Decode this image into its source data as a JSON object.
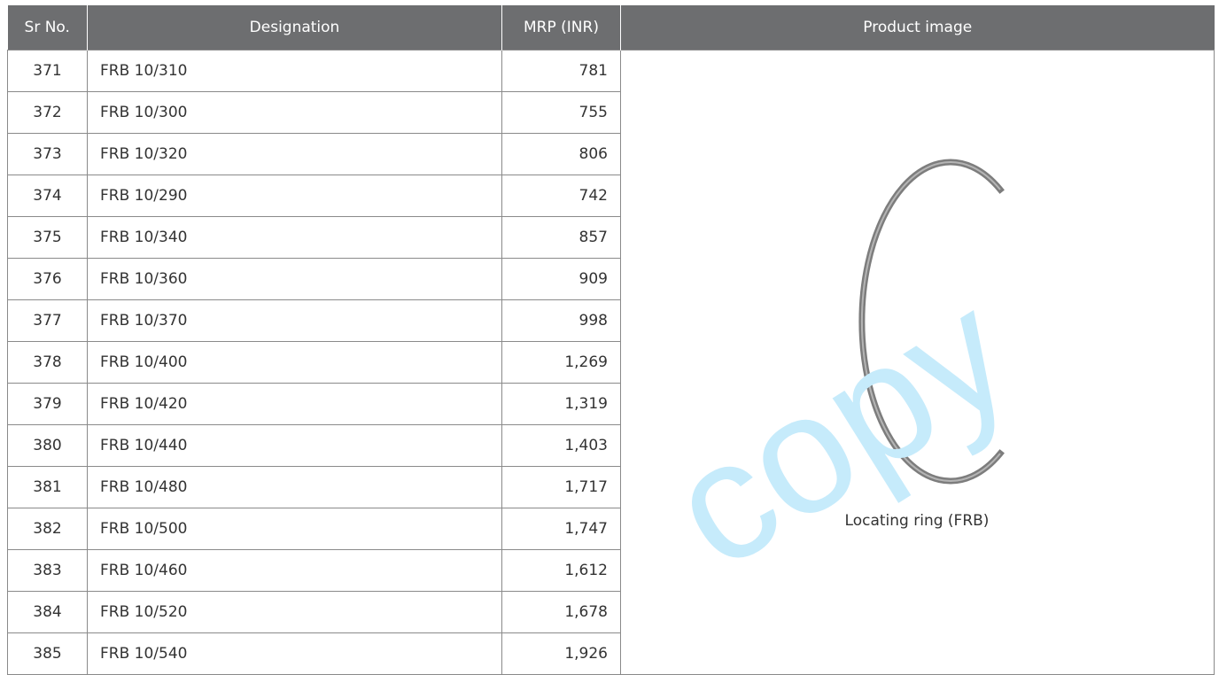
{
  "table": {
    "header": [
      "Sr No.",
      "Designation",
      "MRP (INR)",
      "Product image"
    ],
    "rows": [
      [
        "371",
        "FRB 10/310",
        "781"
      ],
      [
        "372",
        "FRB 10/300",
        "755"
      ],
      [
        "373",
        "FRB 10/320",
        "806"
      ],
      [
        "374",
        "FRB 10/290",
        "742"
      ],
      [
        "375",
        "FRB 10/340",
        "857"
      ],
      [
        "376",
        "FRB 10/360",
        "909"
      ],
      [
        "377",
        "FRB 10/370",
        "998"
      ],
      [
        "378",
        "FRB 10/400",
        "1,269"
      ],
      [
        "379",
        "FRB 10/420",
        "1,319"
      ],
      [
        "380",
        "FRB 10/440",
        "1,403"
      ],
      [
        "381",
        "FRB 10/480",
        "1,717"
      ],
      [
        "382",
        "FRB 10/500",
        "1,747"
      ],
      [
        "383",
        "FRB 10/460",
        "1,612"
      ],
      [
        "384",
        "FRB 10/520",
        "1,678"
      ],
      [
        "385",
        "FRB 10/540",
        "1,926"
      ]
    ],
    "image_caption": "Locating ring (FRB)"
  },
  "watermark": "copy"
}
